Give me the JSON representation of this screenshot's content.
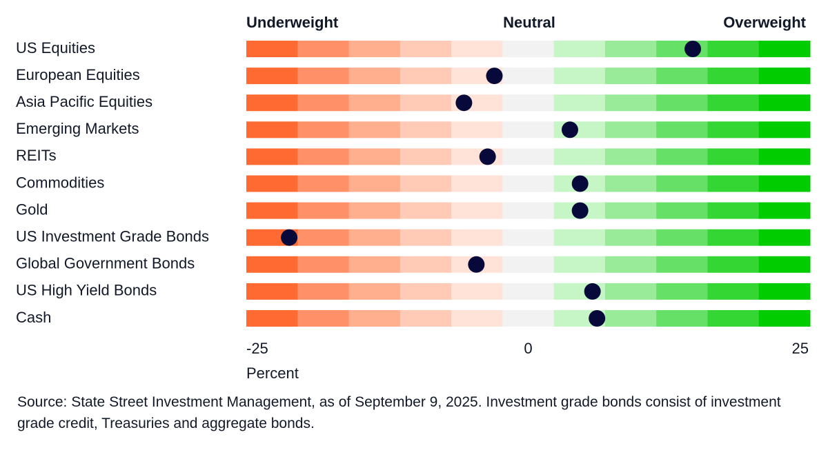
{
  "chart_data": {
    "type": "dot",
    "scale_labels": [
      "Underweight",
      "Neutral",
      "Overweight"
    ],
    "categories": [
      "US Equities",
      "European Equities",
      "Asia Pacific Equities",
      "Emerging Markets",
      "REITs",
      "Commodities",
      "Gold",
      "US Investment Grade Bonds",
      "Global Government Bonds",
      "US High Yield Bonds",
      "Cash"
    ],
    "values": [
      14.6,
      -3.0,
      -5.7,
      3.7,
      -3.6,
      4.6,
      4.6,
      -21.2,
      -4.6,
      5.7,
      6.1
    ],
    "color": "#07093a",
    "band_colors": [
      "#ff6a33",
      "#ff9068",
      "#ffae8e",
      "#ffcbb6",
      "#ffe3d8",
      "#f2f2f2",
      "#c6f5c6",
      "#99eb99",
      "#66e066",
      "#33d633",
      "#00cc00"
    ],
    "xlim": [
      -25,
      25
    ],
    "xticks": [
      -25,
      0,
      25
    ],
    "xlabel": "Percent",
    "note": "Source: State Street Investment Management, as of September 9, 2025. Investment grade bonds consist of investment grade credit, Treasuries and aggregate bonds."
  }
}
